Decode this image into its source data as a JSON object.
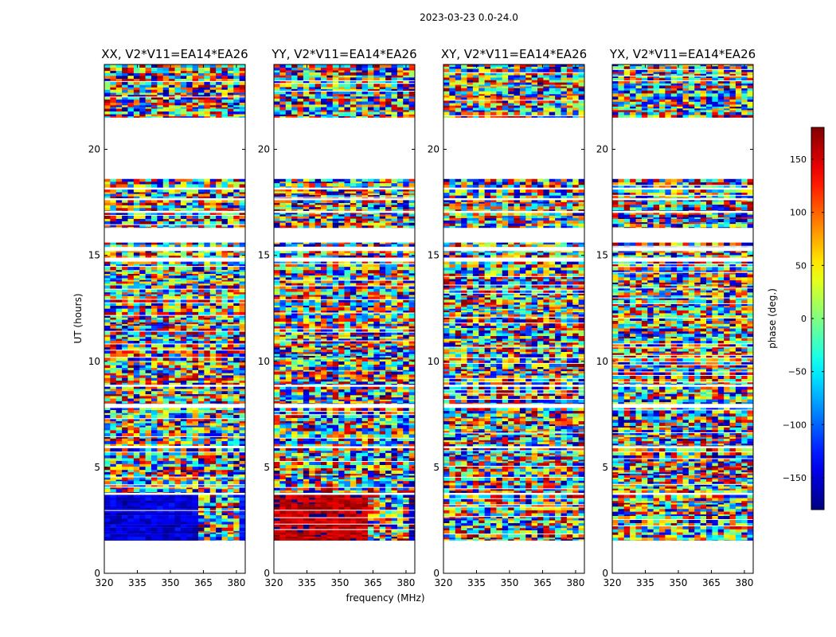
{
  "figure": {
    "suptitle": "2023-03-23 0.0-24.0",
    "xlabel": "frequency (MHz)",
    "ylabel": "UT (hours)"
  },
  "chart_data": {
    "type": "heatmap",
    "title": "2023-03-23 0.0-24.0",
    "xlabel": "frequency (MHz)",
    "ylabel": "UT (hours)",
    "xlim": [
      320,
      384
    ],
    "ylim": [
      0,
      24
    ],
    "xticks": [
      320,
      335,
      350,
      365,
      380
    ],
    "yticks": [
      0,
      5,
      10,
      15,
      20
    ],
    "panels": [
      {
        "title": "XX, V2*V11=EA14*EA26",
        "low_band_phase": -150,
        "high_band_phase": -120
      },
      {
        "title": "YY, V2*V11=EA14*EA26",
        "low_band_phase": 160,
        "high_band_phase": -160
      },
      {
        "title": "XY, V2*V11=EA14*EA26",
        "low_band_phase": null,
        "high_band_phase": null
      },
      {
        "title": "YX, V2*V11=EA14*EA26",
        "low_band_phase": null,
        "high_band_phase": null
      }
    ],
    "data_time_ranges_hours": [
      [
        1.55,
        3.7
      ],
      [
        3.8,
        5.9
      ],
      [
        6.0,
        7.8
      ],
      [
        8.0,
        8.8
      ],
      [
        8.9,
        14.7
      ],
      [
        14.9,
        15.2
      ],
      [
        15.4,
        15.6
      ],
      [
        16.3,
        17.0
      ],
      [
        17.1,
        17.6
      ],
      [
        17.7,
        18.1
      ],
      [
        18.2,
        18.6
      ],
      [
        21.5,
        24.0
      ]
    ],
    "colorbar": {
      "label": "phase (deg.)",
      "range": [
        -180,
        180
      ],
      "ticks": [
        -150,
        -100,
        -50,
        0,
        50,
        100,
        150
      ],
      "tick_labels": [
        "−150",
        "−100",
        "−50",
        "0",
        "50",
        "100",
        "150"
      ],
      "colormap": "jet"
    }
  }
}
